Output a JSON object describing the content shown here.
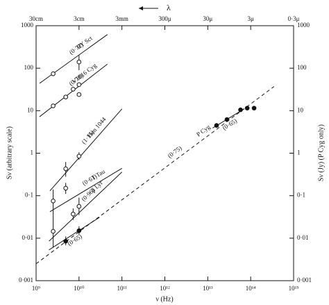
{
  "chart_data": {
    "type": "scatter",
    "x_title": "λ",
    "xlabel": "ν (Hz)",
    "ylabel": "Sν (arbitrary scale)",
    "y2label": "Sν (Jy)   (P Cyg only)",
    "xscale": "log",
    "yscale": "log",
    "xlim": [
      1000000000.0,
      1000000000000000.0
    ],
    "ylim": [
      0.001,
      1000
    ],
    "y2lim": [
      0.001,
      1000
    ],
    "x2lim": [
      30,
      3e-05
    ],
    "xticks": [
      {
        "value": 1000000000.0,
        "label": "10⁹"
      },
      {
        "value": 10000000000.0,
        "label": "10¹⁰"
      },
      {
        "value": 100000000000.0,
        "label": "10¹¹"
      },
      {
        "value": 1000000000000.0,
        "label": "10¹²"
      },
      {
        "value": 10000000000000.0,
        "label": "10¹³"
      },
      {
        "value": 100000000000000.0,
        "label": "10¹⁴"
      },
      {
        "value": 1000000000000000.0,
        "label": "10¹⁵"
      }
    ],
    "x2ticks": [
      {
        "value": 30,
        "label": "30cm"
      },
      {
        "value": 3,
        "label": "3cm"
      },
      {
        "value": 0.3,
        "label": "3mm"
      },
      {
        "value": 0.03,
        "label": "300μ"
      },
      {
        "value": 0.003,
        "label": "30μ"
      },
      {
        "value": 0.0003,
        "label": "3μ"
      },
      {
        "value": 3e-05,
        "label": "0·3μ"
      }
    ],
    "yticks": [
      1000,
      100,
      10,
      1,
      {
        "value": 0.1,
        "label": "0·1"
      },
      {
        "value": 0.01,
        "label": "0·01"
      },
      {
        "value": 0.001,
        "label": "0·001"
      }
    ],
    "y2ticks": [
      1000,
      100,
      10,
      1,
      {
        "value": 0.1,
        "label": "0·1"
      },
      {
        "value": 0.01,
        "label": "0·01"
      },
      {
        "value": 0.001,
        "label": "0·001"
      }
    ],
    "series": [
      {
        "name": "RY Sct",
        "color": "#111",
        "marker": "open",
        "x": [
          2500000000.0,
          10000000000.0
        ],
        "values": [
          74,
          140
        ],
        "err_low": [
          null,
          90
        ],
        "err_high": [
          null,
          200
        ],
        "fits": [
          {
            "label": "(0·72)",
            "dashed": false,
            "x": [
              1200000000.0,
              46000000000.0
            ],
            "y": [
              44,
              620
            ]
          }
        ]
      },
      {
        "name": "V1016 Cyg",
        "color": "#111",
        "marker": "open",
        "x": [
          2500000000.0,
          4900000000.0,
          7300000000.0,
          10000000000.0,
          10000000000.0
        ],
        "values": [
          13,
          21,
          32,
          41,
          24
        ],
        "err_low": [
          null,
          null,
          null,
          null,
          null
        ],
        "err_high": [
          null,
          null,
          null,
          null,
          null
        ],
        "fits": [
          {
            "label": "(0·78)",
            "dashed": false,
            "x": [
              1200000000.0,
              46000000000.0
            ],
            "y": [
              7.2,
              125
            ]
          }
        ]
      },
      {
        "name": "Hen 1044",
        "color": "#111",
        "marker": "open",
        "x": [
          4900000000.0,
          10000000000.0
        ],
        "values": [
          0.43,
          0.85
        ],
        "err_low": [
          0.28,
          0.7
        ],
        "err_high": [
          0.62,
          1.05
        ],
        "fits": [
          {
            "label": "(1·15)",
            "dashed": false,
            "x": [
              2100000000.0,
              100000000000.0
            ],
            "y": [
              0.13,
              11
            ]
          }
        ]
      },
      {
        "name": "T Tau",
        "color": "#111",
        "marker": "open",
        "x": [
          2500000000.0,
          4900000000.0
        ],
        "values": [
          0.075,
          0.15
        ],
        "err_low": [
          0.035,
          0.11
        ],
        "err_high": [
          0.14,
          0.2
        ],
        "fits": [
          {
            "label": "(0·61)",
            "dashed": false,
            "x": [
              2100000000.0,
              100000000000.0
            ],
            "y": [
              0.042,
              0.44
            ]
          }
        ]
      },
      {
        "name": "β Lyr",
        "color": "#111",
        "marker": "open",
        "x": [
          2500000000.0,
          7300000000.0,
          10000000000.0
        ],
        "values": [
          0.0145,
          0.037,
          0.056
        ],
        "err_low": [
          0.006,
          0.027,
          0.035
        ],
        "err_high": [
          0.035,
          0.05,
          0.09
        ],
        "fits": [
          {
            "label": "(0·96)",
            "dashed": false,
            "x": [
              2000000000.0,
              100000000000.0
            ],
            "y": [
              0.0085,
              0.36
            ]
          }
        ]
      },
      {
        "name": "P Cyg",
        "color": "#111",
        "marker": "filled",
        "x": [
          4900000000.0,
          10000000000.0,
          16000000000000.0,
          28000000000000.0,
          58000000000000.0,
          83000000000000.0,
          120000000000000.0
        ],
        "values": [
          0.0085,
          0.015,
          4.5,
          6.2,
          10.5,
          11.5,
          11.5
        ],
        "err_low": [
          0.0068,
          0.012,
          null,
          null,
          null,
          null,
          null
        ],
        "err_high": [
          0.011,
          0.019,
          null,
          null,
          null,
          null,
          null
        ],
        "fits": [
          {
            "label": "(0·75)",
            "dashed": true,
            "x": [
              1000000000.0,
              350000000000000.0
            ],
            "y": [
              0.0025,
              37
            ]
          },
          {
            "label": "(0·65)",
            "dashed": false,
            "x": [
              2000000000.0,
              30000000000.0
            ],
            "y": [
              0.0053,
              0.031
            ]
          },
          {
            "label": "(0·65)",
            "dashed": false,
            "x": [
              13000000000000.0,
              70000000000000.0
            ],
            "y": [
              3.9,
              11
            ]
          }
        ]
      }
    ]
  }
}
